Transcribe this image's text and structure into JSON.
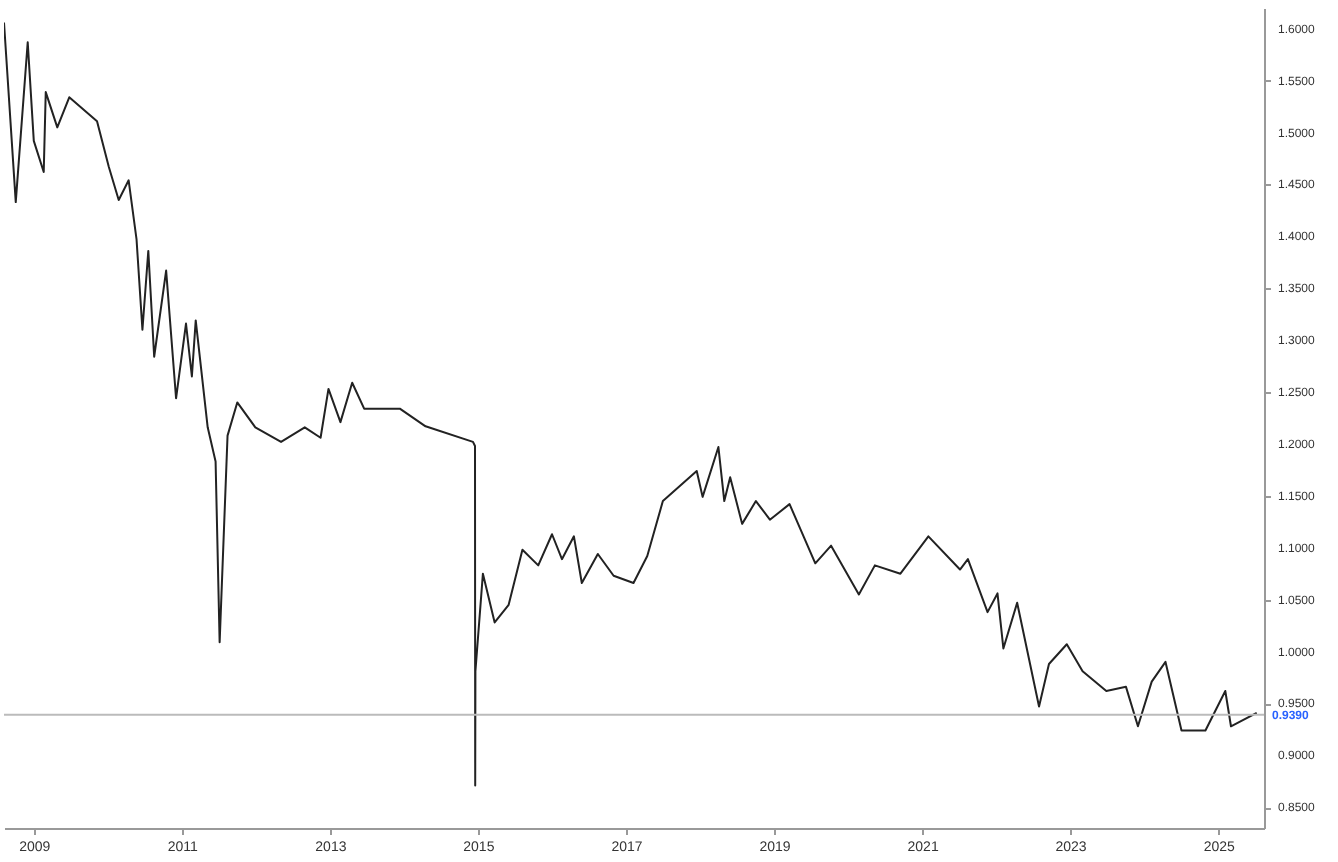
{
  "chart_data": {
    "type": "line",
    "x": [
      "2008-08-07",
      "2008-10-04",
      "2008-12-02",
      "2009-01-01",
      "2009-02-19",
      "2009-03-01",
      "2009-04-27",
      "2009-06-25",
      "2009-11-09",
      "2010-01-06",
      "2010-02-24",
      "2010-04-14",
      "2010-05-23",
      "2010-06-21",
      "2010-07-20",
      "2010-08-18",
      "2010-10-16",
      "2010-12-04",
      "2011-01-22",
      "2011-02-20",
      "2011-03-11",
      "2011-05-09",
      "2011-06-17",
      "2011-07-07",
      "2011-08-15",
      "2011-10-02",
      "2011-12-30",
      "2012-05-05",
      "2012-08-30",
      "2012-11-16",
      "2012-12-25",
      "2013-02-22",
      "2013-04-21",
      "2013-06-19",
      "2013-12-12",
      "2014-04-18",
      "2014-12-08",
      "2014-12-18",
      "2014-12-19",
      "2014-12-20",
      "2015-01-26",
      "2015-03-25",
      "2015-06-02",
      "2015-08-09",
      "2015-10-26",
      "2016-01-02",
      "2016-02-20",
      "2016-04-19",
      "2016-05-28",
      "2016-08-15",
      "2016-11-01",
      "2017-02-07",
      "2017-04-16",
      "2017-07-02",
      "2017-12-16",
      "2018-01-14",
      "2018-04-02",
      "2018-05-01",
      "2018-05-30",
      "2018-07-28",
      "2018-10-04",
      "2018-12-12",
      "2019-03-19",
      "2019-07-24",
      "2019-10-10",
      "2020-02-24",
      "2020-05-13",
      "2020-09-16",
      "2021-02-01",
      "2021-07-07",
      "2021-08-15",
      "2021-11-20",
      "2022-01-08",
      "2022-02-06",
      "2022-04-15",
      "2022-08-01",
      "2022-09-19",
      "2022-12-16",
      "2023-03-04",
      "2023-06-29",
      "2023-10-04",
      "2023-12-02",
      "2024-02-08",
      "2024-04-16",
      "2024-07-04",
      "2024-10-30",
      "2025-02-05",
      "2025-03-05",
      "2025-07-10"
    ],
    "series": [
      {
        "color": "#222222",
        "values": [
          1.606,
          1.433,
          1.587,
          1.492,
          1.462,
          1.539,
          1.505,
          1.534,
          1.511,
          1.467,
          1.435,
          1.454,
          1.397,
          1.31,
          1.386,
          1.284,
          1.367,
          1.244,
          1.316,
          1.265,
          1.319,
          1.216,
          1.183,
          1.009,
          1.208,
          1.24,
          1.216,
          1.202,
          1.216,
          1.206,
          1.253,
          1.221,
          1.259,
          1.234,
          1.234,
          1.217,
          1.202,
          1.198,
          0.871,
          0.981,
          1.075,
          1.028,
          1.045,
          1.098,
          1.083,
          1.113,
          1.089,
          1.111,
          1.066,
          1.094,
          1.073,
          1.066,
          1.092,
          1.145,
          1.174,
          1.149,
          1.197,
          1.145,
          1.168,
          1.123,
          1.145,
          1.127,
          1.142,
          1.085,
          1.102,
          1.055,
          1.083,
          1.075,
          1.111,
          1.079,
          1.089,
          1.038,
          1.056,
          1.003,
          1.047,
          0.947,
          0.988,
          1.007,
          0.981,
          0.962,
          0.966,
          0.928,
          0.971,
          0.99,
          0.924,
          0.924,
          0.962,
          0.928,
          0.941
        ]
      }
    ],
    "xlim": [
      "2008-08-07",
      "2025-08-15"
    ],
    "xticks": [
      {
        "value": "2009-01-01",
        "label": "2009"
      },
      {
        "value": "2011-01-01",
        "label": "2011"
      },
      {
        "value": "2013-01-01",
        "label": "2013"
      },
      {
        "value": "2015-01-01",
        "label": "2015"
      },
      {
        "value": "2017-01-01",
        "label": "2017"
      },
      {
        "value": "2019-01-01",
        "label": "2019"
      },
      {
        "value": "2021-01-01",
        "label": "2021"
      },
      {
        "value": "2023-01-01",
        "label": "2023"
      },
      {
        "value": "2025-01-01",
        "label": "2025"
      }
    ],
    "ylim": [
      0.83,
      1.62
    ],
    "yticks": [
      {
        "value": 0.85,
        "label": "0.8500"
      },
      {
        "value": 0.9,
        "label": "0.9000"
      },
      {
        "value": 0.95,
        "label": "0.9500"
      },
      {
        "value": 1.0,
        "label": "1.0000"
      },
      {
        "value": 1.05,
        "label": "1.0500"
      },
      {
        "value": 1.1,
        "label": "1.1000"
      },
      {
        "value": 1.15,
        "label": "1.1500"
      },
      {
        "value": 1.2,
        "label": "1.2000"
      },
      {
        "value": 1.25,
        "label": "1.2500"
      },
      {
        "value": 1.3,
        "label": "1.3000"
      },
      {
        "value": 1.35,
        "label": "1.3500"
      },
      {
        "value": 1.4,
        "label": "1.4000"
      },
      {
        "value": 1.45,
        "label": "1.4500"
      },
      {
        "value": 1.5,
        "label": "1.5000"
      },
      {
        "value": 1.55,
        "label": "1.5500"
      },
      {
        "value": 1.6,
        "label": "1.6000"
      }
    ],
    "ref_lines": [
      {
        "axis": "y",
        "value": 0.939,
        "label": "0.9390",
        "color": "#bbbbbb"
      }
    ],
    "grid": false,
    "marker": "none",
    "line_style": "solid"
  }
}
